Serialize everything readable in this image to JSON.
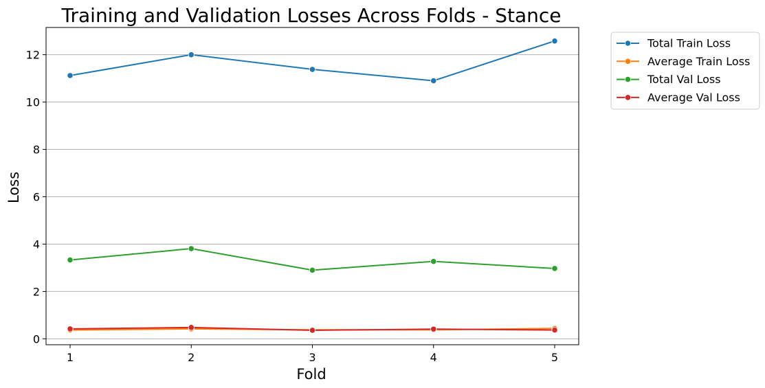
{
  "chart_data": {
    "type": "line",
    "title": "Training and Validation Losses Across Folds - Stance",
    "xlabel": "Fold",
    "ylabel": "Loss",
    "x": [
      1,
      2,
      3,
      4,
      5
    ],
    "x_tick_labels": [
      "1",
      "2",
      "3",
      "4",
      "5"
    ],
    "ylim": [
      -0.25,
      13.15
    ],
    "y_ticks": [
      0,
      2,
      4,
      6,
      8,
      10,
      12
    ],
    "y_tick_labels": [
      "0",
      "2",
      "4",
      "6",
      "8",
      "10",
      "12"
    ],
    "grid": "horizontal",
    "legend_position": "outside-top-right",
    "series": [
      {
        "name": "Total Train Loss",
        "color": "#1f77b4",
        "values": [
          11.12,
          12.0,
          11.38,
          10.9,
          12.58
        ]
      },
      {
        "name": "Average Train Loss",
        "color": "#ff7f0e",
        "values": [
          0.37,
          0.42,
          0.38,
          0.38,
          0.44
        ]
      },
      {
        "name": "Total Val Loss",
        "color": "#2ca02c",
        "values": [
          3.33,
          3.81,
          2.9,
          3.27,
          2.97
        ]
      },
      {
        "name": "Average Val Loss",
        "color": "#d62728",
        "values": [
          0.42,
          0.48,
          0.36,
          0.41,
          0.37
        ]
      }
    ]
  }
}
